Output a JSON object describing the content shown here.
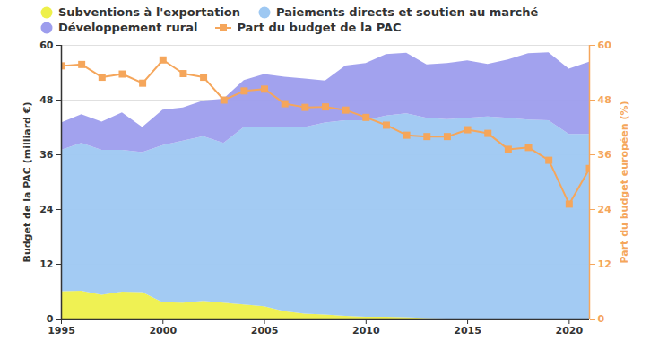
{
  "chart_data": {
    "type": "area",
    "stacked": true,
    "grid": true,
    "legend": "top",
    "x": [
      1995,
      1996,
      1997,
      1998,
      1999,
      2000,
      2001,
      2002,
      2003,
      2004,
      2005,
      2006,
      2007,
      2008,
      2009,
      2010,
      2011,
      2012,
      2013,
      2014,
      2015,
      2016,
      2017,
      2018,
      2019,
      2020,
      2021
    ],
    "xlim": [
      1995,
      2021
    ],
    "xticks": [
      1995,
      2000,
      2005,
      2010,
      2015,
      2020
    ],
    "ylim": [
      0,
      60
    ],
    "yticks": [
      0,
      12,
      24,
      36,
      48,
      60
    ],
    "y2lim": [
      0,
      60
    ],
    "y2ticks": [
      0,
      12,
      24,
      36,
      48,
      60
    ],
    "y_label": "Budget de la PAC (milliard €)",
    "y2_label": "Part du budget européen (%)",
    "series": [
      {
        "name": "Subventions à l'exportation",
        "color": "#eef04a",
        "type": "area",
        "values": [
          6,
          6.1,
          5.2,
          5.9,
          5.8,
          3.6,
          3.5,
          3.9,
          3.5,
          3.1,
          2.7,
          1.6,
          1.1,
          0.9,
          0.6,
          0.4,
          0.4,
          0.3,
          0.1,
          0,
          0,
          0,
          0,
          0,
          0,
          0,
          0
        ]
      },
      {
        "name": "Paiements directs et soutien au marché",
        "color": "#9ec8f2",
        "type": "area",
        "values": [
          31,
          32.4,
          31.8,
          31.1,
          30.7,
          34.4,
          35.5,
          36.1,
          35,
          38.9,
          39.3,
          40.4,
          40.9,
          42.1,
          42.9,
          43.1,
          44.1,
          44.7,
          43.9,
          43.7,
          44,
          44.3,
          44,
          43.6,
          43.5,
          40.5,
          40.5
        ]
      },
      {
        "name": "Développement rural",
        "color": "#9d9ded",
        "type": "area",
        "values": [
          6,
          6.3,
          6.2,
          8.2,
          5.5,
          7.8,
          7.3,
          7.8,
          9.7,
          10.3,
          11.6,
          11,
          10.6,
          9.2,
          12,
          12.5,
          13.5,
          13.3,
          11.7,
          12.3,
          12.6,
          11.5,
          12.8,
          14.6,
          14.9,
          14.3,
          15.8
        ]
      },
      {
        "name": "Part du budget de la PAC",
        "color": "#f5a65b",
        "type": "line",
        "marker": "square",
        "axis": "y2",
        "values": [
          55.5,
          55.8,
          53,
          53.7,
          51.7,
          56.8,
          53.8,
          53,
          48,
          50,
          50.4,
          47.2,
          46.4,
          46.5,
          45.8,
          44.2,
          42.5,
          40.3,
          40,
          40,
          41.5,
          40.7,
          37.2,
          37.6,
          34.8,
          25.2,
          33
        ]
      }
    ]
  }
}
